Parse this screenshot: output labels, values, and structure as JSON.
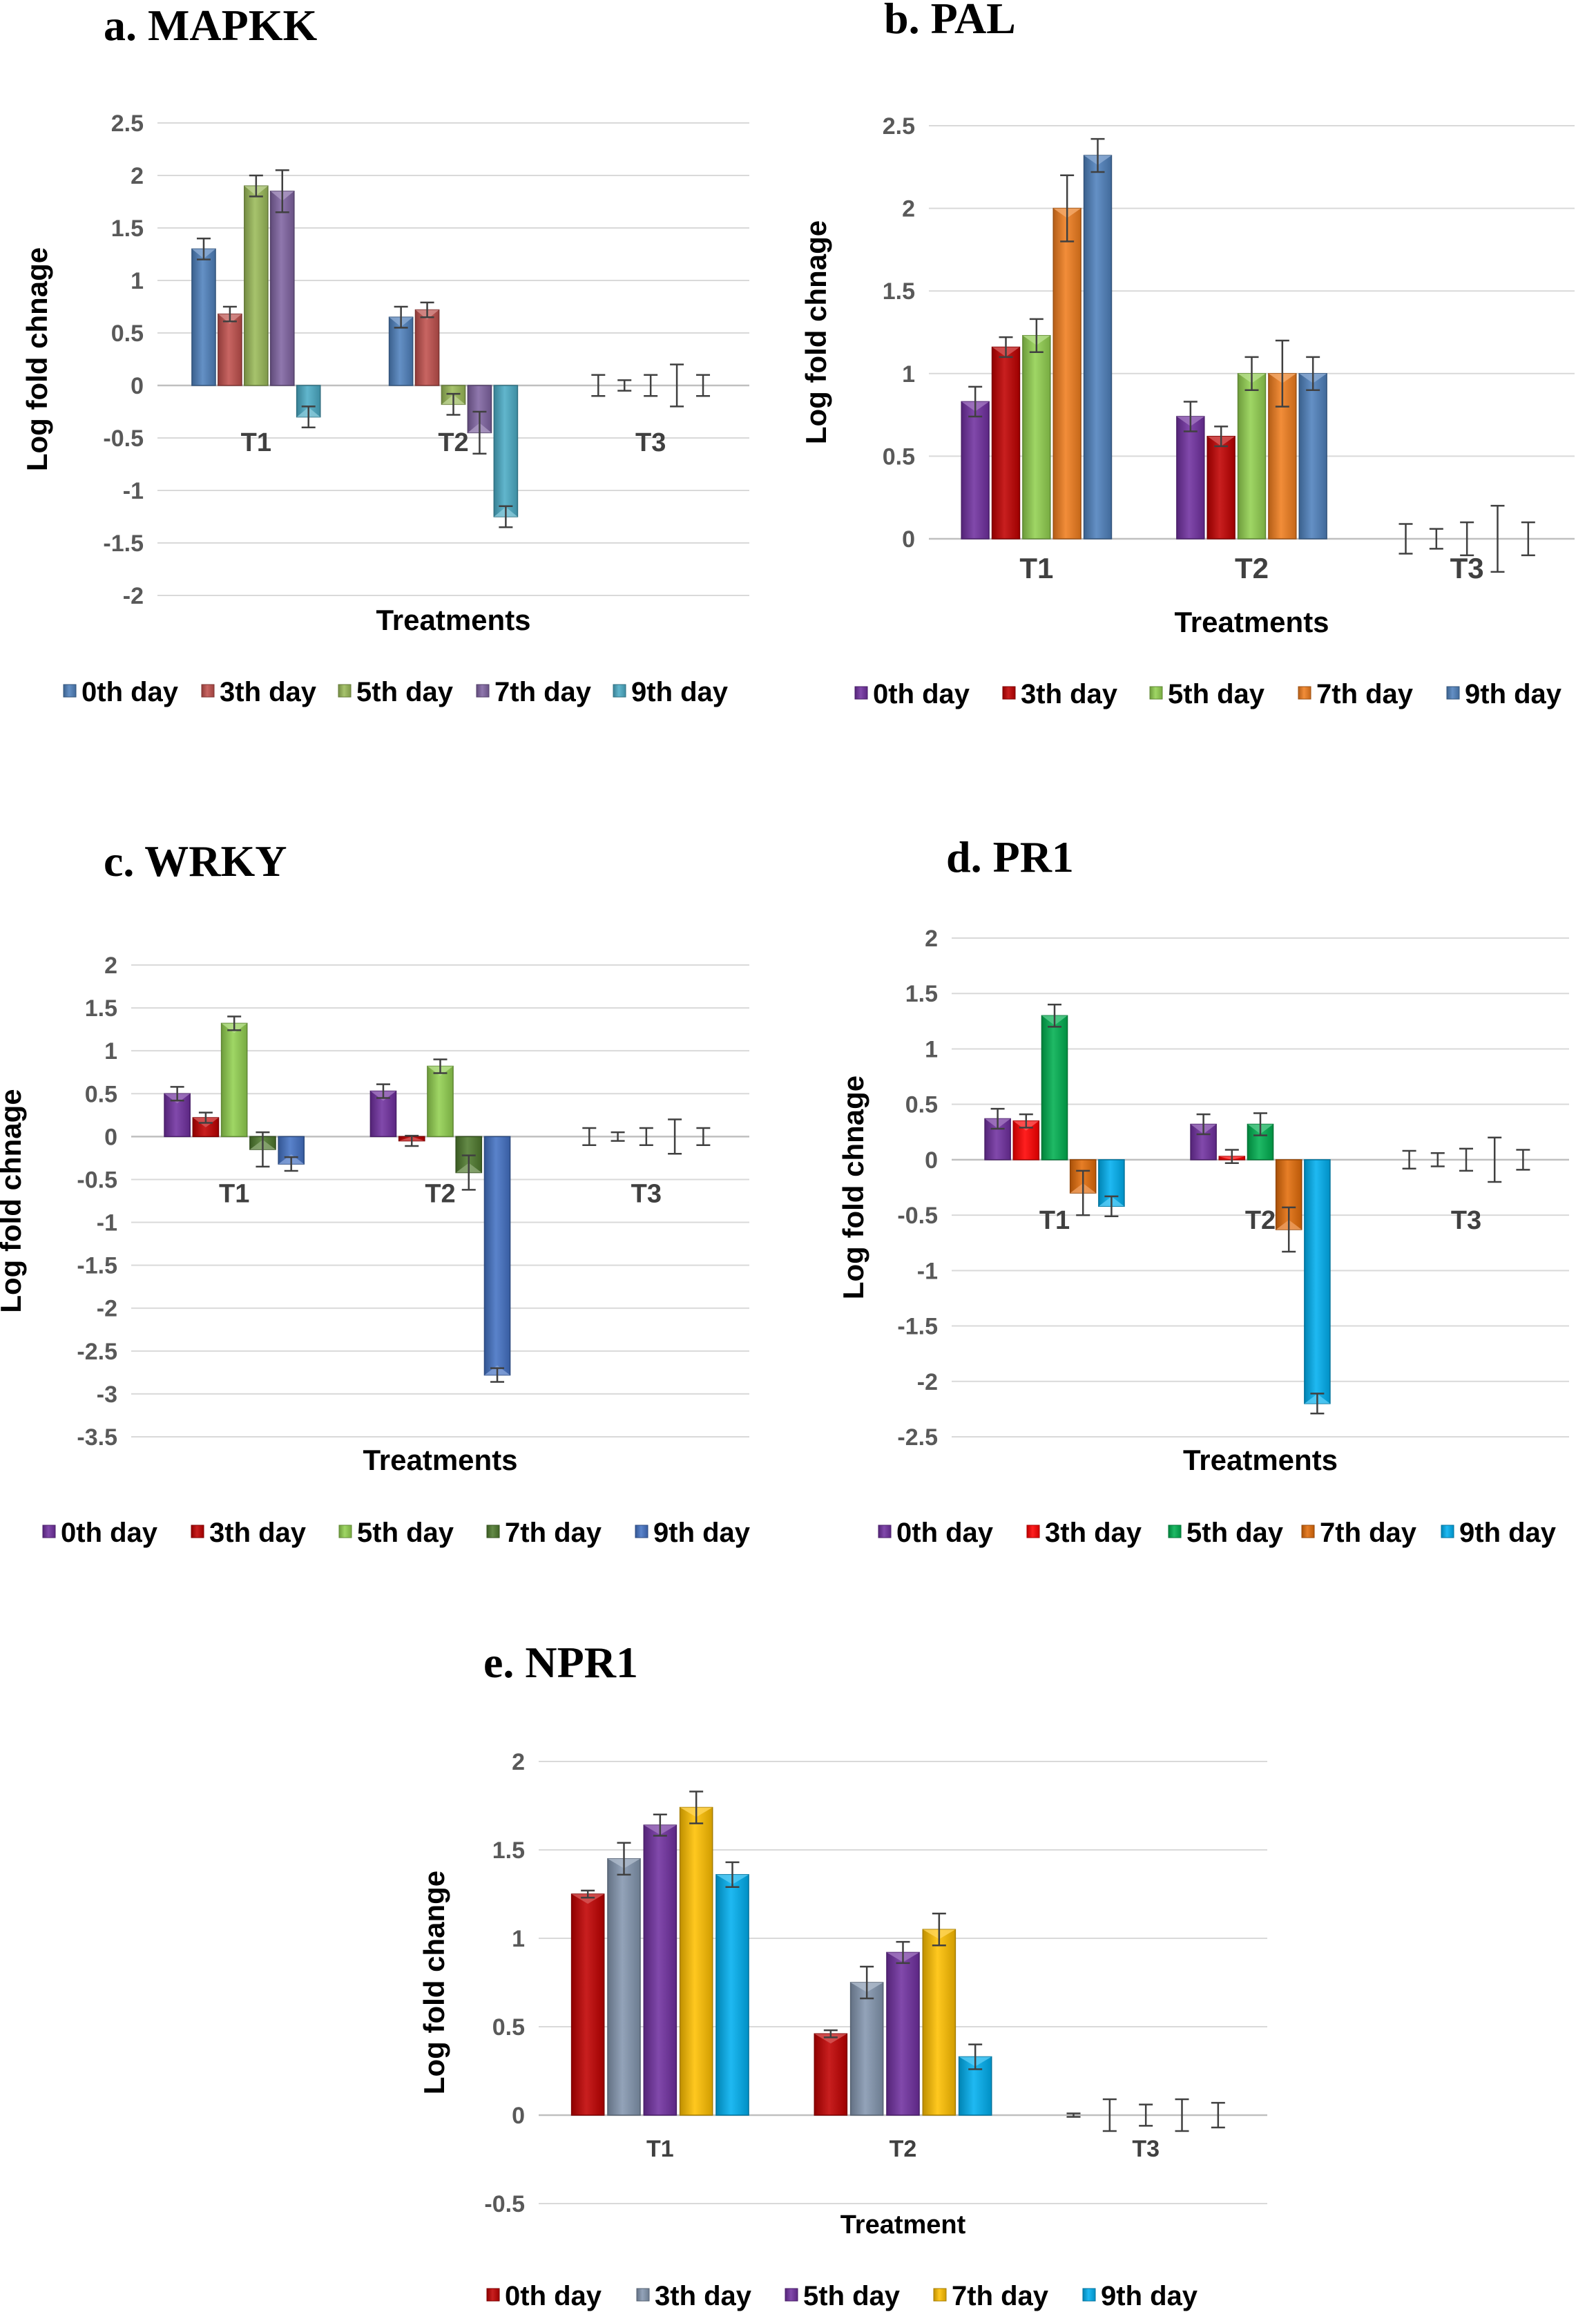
{
  "chart_data": [
    {
      "type": "bar",
      "title": "a. MAPKK",
      "xlabel": "Treatments",
      "ylabel": "Log fold chnage",
      "ylim": [
        -2,
        2.5
      ],
      "yticks": [
        "2.5",
        "2",
        "1.5",
        "1",
        "0.5",
        "0",
        "-0.5",
        "-1",
        "-1.5",
        "-2"
      ],
      "category_labels_position": "below-zero-line",
      "categories": [
        "T1",
        "T2",
        "T3"
      ],
      "series": [
        {
          "name": "0th day",
          "color": "#4f81bd",
          "values": [
            1.3,
            0.65,
            0.0
          ],
          "errors": [
            0.1,
            0.1,
            0.1
          ]
        },
        {
          "name": "3th day",
          "color": "#c0504d",
          "values": [
            0.68,
            0.72,
            0.0
          ],
          "errors": [
            0.07,
            0.07,
            0.05
          ]
        },
        {
          "name": "5th day",
          "color": "#9bbb59",
          "values": [
            1.9,
            -0.18,
            0.0
          ],
          "errors": [
            0.1,
            0.1,
            0.1
          ]
        },
        {
          "name": "7th day",
          "color": "#8064a2",
          "values": [
            1.85,
            -0.45,
            0.0
          ],
          "errors": [
            0.2,
            0.2,
            0.2
          ]
        },
        {
          "name": "9th day",
          "color": "#4bacc6",
          "values": [
            -0.3,
            -1.25,
            0.0
          ],
          "errors": [
            0.1,
            0.1,
            0.1
          ]
        }
      ],
      "legend": "bottom"
    },
    {
      "type": "bar",
      "title": "b. PAL",
      "xlabel": "Treatments",
      "ylabel": "Log fold chnage",
      "ylim": [
        0,
        2.5
      ],
      "yticks": [
        "2.5",
        "2",
        "1.5",
        "1",
        "0.5",
        "0"
      ],
      "category_labels_position": "below-axis",
      "categories": [
        "T1",
        "T2",
        "T3"
      ],
      "series": [
        {
          "name": "0th day",
          "color": "#7030a0",
          "values": [
            0.83,
            0.74,
            0.0
          ],
          "errors": [
            0.09,
            0.09,
            0.09
          ]
        },
        {
          "name": "3th day",
          "color": "#c00000",
          "values": [
            1.16,
            0.62,
            0.0
          ],
          "errors": [
            0.06,
            0.06,
            0.06
          ]
        },
        {
          "name": "5th day",
          "color": "#92d050",
          "values": [
            1.23,
            1.0,
            0.0
          ],
          "errors": [
            0.1,
            0.1,
            0.1
          ]
        },
        {
          "name": "7th day",
          "color": "#f07d1e",
          "values": [
            2.0,
            1.0,
            0.0
          ],
          "errors": [
            0.2,
            0.2,
            0.2
          ]
        },
        {
          "name": "9th day",
          "color": "#4f81bd",
          "values": [
            2.32,
            1.0,
            0.0
          ],
          "errors": [
            0.1,
            0.1,
            0.1
          ]
        }
      ],
      "legend": "bottom"
    },
    {
      "type": "bar",
      "title": "c. WRKY",
      "xlabel": "Treatments",
      "ylabel": "Log fold chnage",
      "ylim": [
        -3.5,
        2
      ],
      "yticks": [
        "2",
        "1.5",
        "1",
        "0.5",
        "0",
        "-0.5",
        "-1",
        "-1.5",
        "-2",
        "-2.5",
        "-3",
        "-3.5"
      ],
      "category_labels_position": "below-zero-line",
      "categories": [
        "T1",
        "T2",
        "T3"
      ],
      "series": [
        {
          "name": "0th day",
          "color": "#7030a0",
          "values": [
            0.5,
            0.53,
            0.0
          ],
          "errors": [
            0.08,
            0.08,
            0.1
          ]
        },
        {
          "name": "3th day",
          "color": "#c00000",
          "values": [
            0.22,
            -0.05,
            0.0
          ],
          "errors": [
            0.06,
            0.06,
            0.05
          ]
        },
        {
          "name": "5th day",
          "color": "#92d050",
          "values": [
            1.32,
            0.82,
            0.0
          ],
          "errors": [
            0.08,
            0.08,
            0.1
          ]
        },
        {
          "name": "7th day",
          "color": "#4f7a2e",
          "values": [
            -0.15,
            -0.42,
            0.0
          ],
          "errors": [
            0.2,
            0.2,
            0.2
          ]
        },
        {
          "name": "9th day",
          "color": "#4472c4",
          "values": [
            -0.32,
            -2.78,
            0.0
          ],
          "errors": [
            0.08,
            0.08,
            0.1
          ]
        }
      ],
      "legend": "bottom"
    },
    {
      "type": "bar",
      "title": "d. PR1",
      "xlabel": "Treatments",
      "ylabel": "Log fold chnage",
      "ylim": [
        -2.5,
        2
      ],
      "yticks": [
        "2",
        "1.5",
        "1",
        "0.5",
        "0",
        "-0.5",
        "-1",
        "-1.5",
        "-2",
        "-2.5"
      ],
      "category_labels_position": "below-zero-line",
      "categories": [
        "T1",
        "T2",
        "T3"
      ],
      "series": [
        {
          "name": "0th day",
          "color": "#7030a0",
          "values": [
            0.37,
            0.32,
            0.0
          ],
          "errors": [
            0.09,
            0.09,
            0.08
          ]
        },
        {
          "name": "3th day",
          "color": "#ff0000",
          "values": [
            0.35,
            0.03,
            0.0
          ],
          "errors": [
            0.06,
            0.06,
            0.06
          ]
        },
        {
          "name": "5th day",
          "color": "#00b050",
          "values": [
            1.3,
            0.32,
            0.0
          ],
          "errors": [
            0.1,
            0.1,
            0.1
          ]
        },
        {
          "name": "7th day",
          "color": "#e36c0a",
          "values": [
            -0.3,
            -0.63,
            0.0
          ],
          "errors": [
            0.2,
            0.2,
            0.2
          ]
        },
        {
          "name": "9th day",
          "color": "#00b0f0",
          "values": [
            -0.42,
            -2.2,
            0.0
          ],
          "errors": [
            0.09,
            0.09,
            0.09
          ]
        }
      ],
      "legend": "bottom"
    },
    {
      "type": "bar",
      "title": "e. NPR1",
      "xlabel": "Treatment",
      "ylabel": "Log fold change",
      "ylim": [
        -0.5,
        2
      ],
      "yticks": [
        "2",
        "1.5",
        "1",
        "0.5",
        "0",
        "-0.5"
      ],
      "category_labels_position": "below-zero-line",
      "categories": [
        "T1",
        "T2",
        "T3"
      ],
      "series": [
        {
          "name": "0th day",
          "color": "#c00000",
          "values": [
            1.25,
            0.46,
            0.0
          ],
          "errors": [
            0.02,
            0.02,
            0.01
          ]
        },
        {
          "name": "3th day",
          "color": "#8497b0",
          "values": [
            1.45,
            0.75,
            0.0
          ],
          "errors": [
            0.09,
            0.09,
            0.09
          ]
        },
        {
          "name": "5th day",
          "color": "#7030a0",
          "values": [
            1.64,
            0.92,
            0.0
          ],
          "errors": [
            0.06,
            0.06,
            0.06
          ]
        },
        {
          "name": "7th day",
          "color": "#ffc000",
          "values": [
            1.74,
            1.05,
            0.0
          ],
          "errors": [
            0.09,
            0.09,
            0.09
          ]
        },
        {
          "name": "9th day",
          "color": "#00b0f0",
          "values": [
            1.36,
            0.33,
            0.0
          ],
          "errors": [
            0.07,
            0.07,
            0.07
          ]
        }
      ],
      "legend": "bottom"
    }
  ]
}
